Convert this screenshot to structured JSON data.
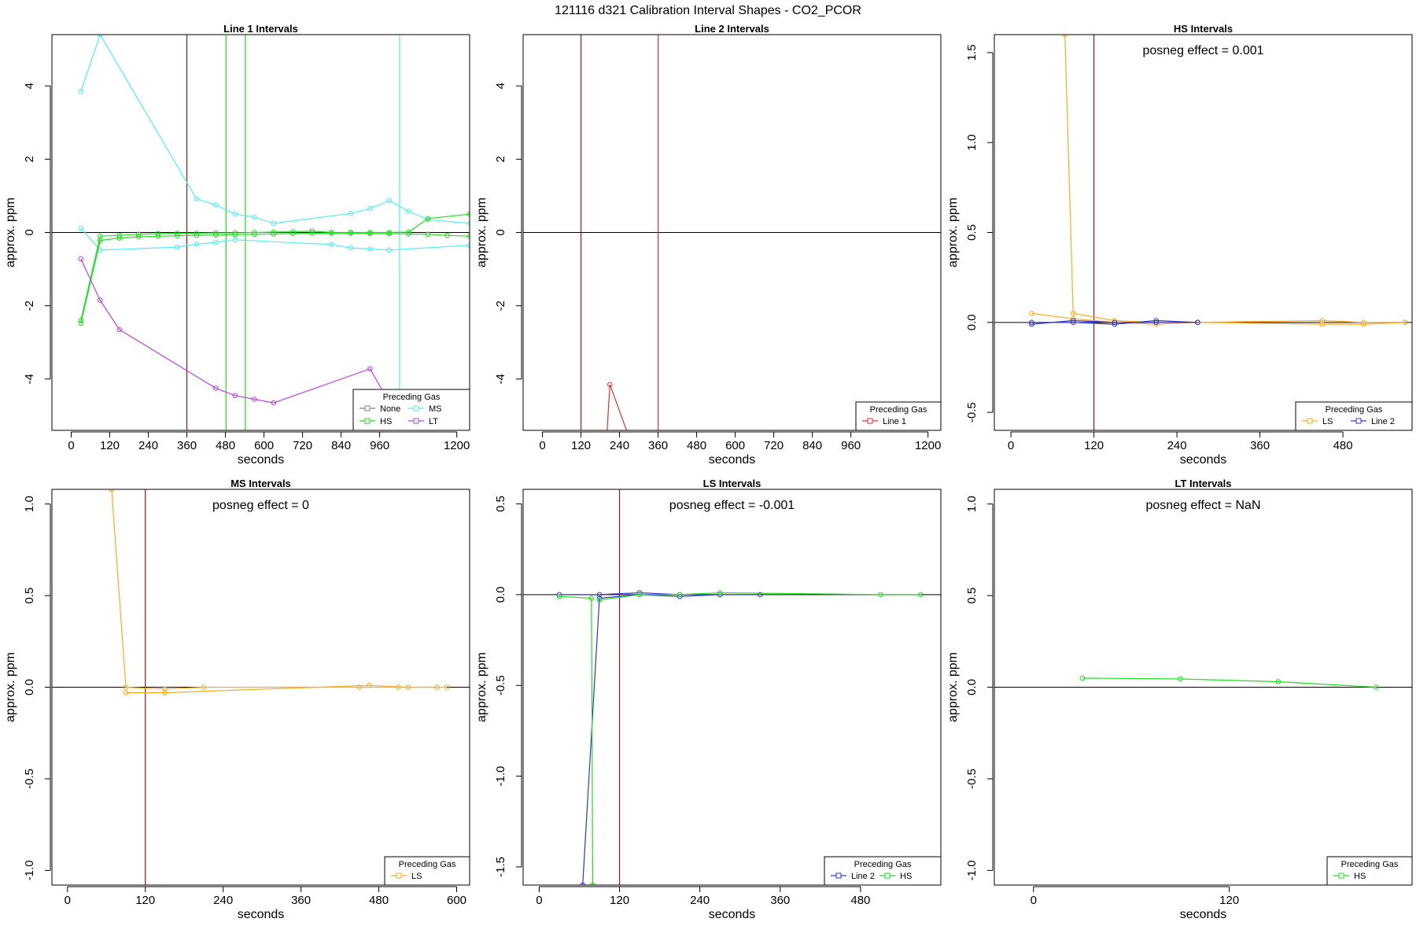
{
  "page_title": "121116  d321   Calibration Interval Shapes - CO2_PCOR",
  "colors": {
    "None": "#808080",
    "HS": "#22dd22",
    "MS": "#55eeee",
    "LT": "#bb44dd",
    "Line 1": "#dd3333",
    "Line 2": "#3333cc",
    "LS": "#ffaa22",
    "ref_line": "#000000",
    "marker": "#8b1a1a"
  },
  "chart_data": [
    {
      "id": "line1",
      "type": "line",
      "title": "Line 1 Intervals",
      "xlabel": "seconds",
      "ylabel": "approx. ppm",
      "xlim": [
        -60,
        1240
      ],
      "ylim": [
        -5.4,
        5.4
      ],
      "xticks": [
        0,
        120,
        240,
        360,
        480,
        600,
        720,
        840,
        960,
        1200
      ],
      "yticks": [
        -4,
        -2,
        0,
        2,
        4
      ],
      "annotation": "",
      "vlines": [
        {
          "x": 360,
          "color": "marker"
        },
        {
          "x": 482,
          "color": "HS"
        },
        {
          "x": 542,
          "color": "HS"
        },
        {
          "x": 1022,
          "color": "MS"
        }
      ],
      "legend": {
        "title": "Preceding Gas",
        "position": "bottom-right",
        "entries": [
          "None",
          "MS",
          "HS",
          "LT"
        ]
      },
      "series": [
        {
          "name": "MS",
          "color": "MS",
          "points": [
            [
              30,
              3.85
            ],
            [
              90,
              5.4
            ],
            [
              390,
              0.92
            ],
            [
              450,
              0.75
            ],
            [
              510,
              0.5
            ],
            [
              570,
              0.42
            ],
            [
              630,
              0.25
            ],
            [
              870,
              0.52
            ],
            [
              930,
              0.65
            ],
            [
              990,
              0.87
            ],
            [
              1050,
              0.58
            ],
            [
              1110,
              0.35
            ],
            [
              1240,
              0.25
            ]
          ]
        },
        {
          "name": "MS",
          "color": "MS",
          "points": [
            [
              30,
              0.12
            ],
            [
              90,
              -0.48
            ],
            [
              330,
              -0.4
            ],
            [
              390,
              -0.32
            ],
            [
              450,
              -0.27
            ],
            [
              510,
              -0.2
            ],
            [
              810,
              -0.33
            ],
            [
              870,
              -0.42
            ],
            [
              930,
              -0.45
            ],
            [
              990,
              -0.48
            ],
            [
              1240,
              -0.35
            ]
          ]
        },
        {
          "name": "HS",
          "color": "HS",
          "points": [
            [
              30,
              -2.4
            ],
            [
              90,
              -0.1
            ],
            [
              150,
              -0.08
            ],
            [
              210,
              -0.05
            ],
            [
              270,
              -0.03
            ],
            [
              330,
              -0.02
            ],
            [
              390,
              -0.02
            ],
            [
              450,
              -0.01
            ],
            [
              510,
              -0.01
            ],
            [
              570,
              0.0
            ],
            [
              630,
              0.01
            ],
            [
              690,
              0.02
            ],
            [
              750,
              0.04
            ],
            [
              810,
              0.0
            ],
            [
              870,
              0.0
            ],
            [
              930,
              0.0
            ],
            [
              990,
              0.0
            ],
            [
              1050,
              0.01
            ],
            [
              1110,
              0.38
            ],
            [
              1240,
              0.5
            ]
          ]
        },
        {
          "name": "HS",
          "color": "HS",
          "points": [
            [
              30,
              -2.48
            ],
            [
              90,
              -0.22
            ],
            [
              150,
              -0.15
            ],
            [
              210,
              -0.12
            ],
            [
              270,
              -0.1
            ],
            [
              330,
              -0.09
            ],
            [
              390,
              -0.08
            ],
            [
              450,
              -0.07
            ],
            [
              510,
              -0.06
            ],
            [
              570,
              -0.05
            ],
            [
              630,
              -0.04
            ],
            [
              690,
              -0.03
            ],
            [
              750,
              -0.02
            ],
            [
              810,
              -0.02
            ],
            [
              870,
              -0.02
            ],
            [
              930,
              -0.03
            ],
            [
              990,
              -0.03
            ],
            [
              1050,
              -0.04
            ],
            [
              1110,
              -0.05
            ],
            [
              1170,
              -0.08
            ],
            [
              1240,
              -0.1
            ]
          ]
        },
        {
          "name": "LT",
          "color": "LT",
          "points": [
            [
              30,
              -0.72
            ],
            [
              90,
              -1.85
            ],
            [
              150,
              -2.65
            ],
            [
              450,
              -4.25
            ],
            [
              510,
              -4.45
            ],
            [
              570,
              -4.55
            ],
            [
              630,
              -4.65
            ],
            [
              930,
              -3.72
            ],
            [
              1000,
              -4.8
            ],
            [
              1040,
              -5.4
            ]
          ]
        }
      ]
    },
    {
      "id": "line2",
      "type": "line",
      "title": "Line 2 Intervals",
      "xlabel": "seconds",
      "ylabel": "approx. ppm",
      "xlim": [
        -60,
        1240
      ],
      "ylim": [
        -5.4,
        5.4
      ],
      "xticks": [
        0,
        120,
        240,
        360,
        480,
        600,
        720,
        840,
        960,
        1200
      ],
      "yticks": [
        -4,
        -2,
        0,
        2,
        4
      ],
      "annotation": "",
      "vlines": [
        {
          "x": 120,
          "color": "marker"
        },
        {
          "x": 360,
          "color": "Line 1"
        }
      ],
      "legend": {
        "title": "Preceding Gas",
        "position": "bottom-right",
        "entries": [
          "Line 1"
        ]
      },
      "series": [
        {
          "name": "Line 1",
          "color": "Line 1",
          "points": [
            [
              200,
              -5.6
            ],
            [
              210,
              -4.15
            ],
            [
              270,
              -5.6
            ]
          ]
        }
      ]
    },
    {
      "id": "hs",
      "type": "line",
      "title": "HS Intervals",
      "xlabel": "seconds",
      "ylabel": "approx. ppm",
      "xlim": [
        -24,
        580
      ],
      "ylim": [
        -0.6,
        1.6
      ],
      "xticks": [
        0,
        120,
        240,
        360,
        480
      ],
      "yticks": [
        -0.5,
        0.0,
        0.5,
        1.0,
        1.5
      ],
      "annotation": "posneg effect = 0.001",
      "vlines": [
        {
          "x": 120,
          "color": "marker"
        }
      ],
      "legend": {
        "title": "Preceding Gas",
        "position": "bottom-right",
        "entries": [
          "LS",
          "Line 2"
        ]
      },
      "series": [
        {
          "name": "LS",
          "color": "LS",
          "points": [
            [
              78,
              1.6
            ],
            [
              90,
              0.05
            ],
            [
              150,
              0.01
            ],
            [
              210,
              0.0
            ],
            [
              270,
              0.0
            ],
            [
              450,
              0.01
            ],
            [
              510,
              0.0
            ],
            [
              570,
              0.0
            ]
          ]
        },
        {
          "name": "LS",
          "color": "LS",
          "points": [
            [
              30,
              0.05
            ],
            [
              90,
              0.02
            ],
            [
              150,
              0.0
            ],
            [
              210,
              -0.01
            ],
            [
              270,
              0.0
            ],
            [
              450,
              -0.01
            ],
            [
              510,
              -0.01
            ],
            [
              570,
              0.0
            ]
          ]
        },
        {
          "name": "Line 2",
          "color": "Line 2",
          "points": [
            [
              30,
              0.0
            ],
            [
              90,
              0.0
            ],
            [
              150,
              -0.01
            ],
            [
              210,
              0.01
            ],
            [
              270,
              0.0
            ]
          ]
        },
        {
          "name": "Line 2",
          "color": "Line 2",
          "points": [
            [
              30,
              -0.01
            ],
            [
              90,
              0.01
            ],
            [
              150,
              0.0
            ],
            [
              210,
              0.0
            ],
            [
              270,
              0.0
            ]
          ]
        }
      ]
    },
    {
      "id": "ms",
      "type": "line",
      "title": "MS Intervals",
      "xlabel": "seconds",
      "ylabel": "approx. ppm",
      "xlim": [
        -24,
        620
      ],
      "ylim": [
        -1.08,
        1.08
      ],
      "xticks": [
        0,
        120,
        240,
        360,
        480,
        600
      ],
      "yticks": [
        -1.0,
        -0.5,
        0.0,
        0.5,
        1.0
      ],
      "annotation": "posneg effect = 0",
      "vlines": [
        {
          "x": 120,
          "color": "marker"
        }
      ],
      "legend": {
        "title": "Preceding Gas",
        "position": "bottom-right",
        "entries": [
          "LS"
        ]
      },
      "series": [
        {
          "name": "LS",
          "color": "LS",
          "points": [
            [
              68,
              1.08
            ],
            [
              90,
              0.0
            ],
            [
              150,
              -0.01
            ],
            [
              210,
              0.0
            ],
            [
              450,
              0.0
            ],
            [
              510,
              0.0
            ],
            [
              570,
              0.0
            ]
          ]
        },
        {
          "name": "LS",
          "color": "LS",
          "points": [
            [
              90,
              -0.03
            ],
            [
              150,
              -0.03
            ],
            [
              465,
              0.01
            ],
            [
              525,
              0.0
            ],
            [
              585,
              0.0
            ]
          ]
        }
      ]
    },
    {
      "id": "ls",
      "type": "line",
      "title": "LS Intervals",
      "xlabel": "seconds",
      "ylabel": "approx. ppm",
      "xlim": [
        -24,
        600
      ],
      "ylim": [
        -1.6,
        0.58
      ],
      "xticks": [
        0,
        120,
        240,
        360,
        480
      ],
      "yticks": [
        -1.5,
        -1.0,
        -0.5,
        0.0,
        0.5
      ],
      "annotation": "posneg effect = -0.001",
      "vlines": [
        {
          "x": 120,
          "color": "marker"
        }
      ],
      "legend": {
        "title": "Preceding Gas",
        "position": "bottom-right",
        "entries": [
          "Line 2",
          "HS"
        ]
      },
      "series": [
        {
          "name": "Line 2",
          "color": "Line 2",
          "points": [
            [
              65,
              -1.6
            ],
            [
              90,
              -0.02
            ],
            [
              150,
              0.0
            ],
            [
              210,
              -0.01
            ],
            [
              270,
              0.0
            ]
          ]
        },
        {
          "name": "Line 2",
          "color": "Line 2",
          "points": [
            [
              30,
              0.0
            ],
            [
              90,
              0.0
            ],
            [
              150,
              0.01
            ],
            [
              210,
              0.0
            ],
            [
              270,
              0.0
            ],
            [
              330,
              0.0
            ]
          ]
        },
        {
          "name": "HS",
          "color": "HS",
          "points": [
            [
              30,
              -0.01
            ],
            [
              78,
              -0.02
            ],
            [
              80,
              -1.6
            ]
          ]
        },
        {
          "name": "HS",
          "color": "HS",
          "points": [
            [
              90,
              -0.03
            ],
            [
              150,
              0.0
            ],
            [
              210,
              0.0
            ],
            [
              270,
              0.01
            ],
            [
              510,
              0.0
            ],
            [
              570,
              0.0
            ]
          ]
        }
      ]
    },
    {
      "id": "lt",
      "type": "line",
      "title": "LT Intervals",
      "xlabel": "seconds",
      "ylabel": "approx. ppm",
      "xlim": [
        -24,
        232
      ],
      "ylim": [
        -1.08,
        1.08
      ],
      "xticks": [
        0,
        120
      ],
      "yticks": [
        -1.0,
        -0.5,
        0.0,
        0.5,
        1.0
      ],
      "annotation": "posneg effect = NaN",
      "vlines": [],
      "legend": {
        "title": "Preceding Gas",
        "position": "bottom-right",
        "entries": [
          "HS"
        ]
      },
      "series": [
        {
          "name": "HS",
          "color": "HS",
          "points": [
            [
              30,
              0.05
            ],
            [
              90,
              0.045
            ],
            [
              150,
              0.03
            ],
            [
              210,
              0.0
            ]
          ]
        }
      ]
    }
  ]
}
